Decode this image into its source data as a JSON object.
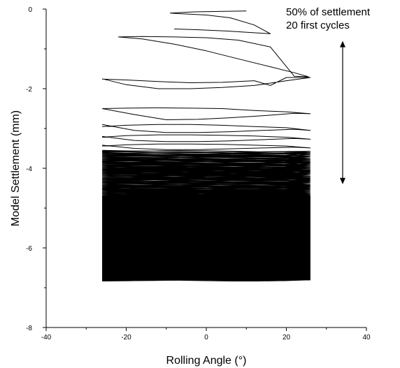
{
  "chart_data": {
    "type": "line",
    "title": "",
    "xlabel": "Rolling Angle (°)",
    "ylabel": "Model Settlement (mm)",
    "xlim": [
      -40,
      40
    ],
    "ylim": [
      -8,
      0
    ],
    "x_ticks": [
      -40,
      -20,
      0,
      20,
      40
    ],
    "y_ticks": [
      0,
      -2,
      -4,
      -6,
      -8
    ],
    "grid": false,
    "legend": "none",
    "series_color": "#000000",
    "rolling_range": [
      -26,
      26
    ],
    "annotations": [
      {
        "lines": [
          "50% of settlement",
          "20 first cycles"
        ]
      }
    ],
    "arrow_range": [
      -0.8,
      -4.4
    ],
    "series": [
      {
        "x": [
          10,
          3,
          -3,
          -9,
          -6,
          0,
          6,
          12,
          16,
          13,
          5,
          -2,
          -8
        ],
        "y": [
          -0.05,
          -0.06,
          -0.07,
          -0.1,
          -0.12,
          -0.15,
          -0.22,
          -0.4,
          -0.62,
          -0.6,
          -0.55,
          -0.52,
          -0.5
        ]
      },
      {
        "x": [
          -22,
          -16,
          -8,
          0,
          8,
          16,
          22,
          25.5,
          22,
          16,
          8,
          0,
          -8,
          -16,
          -22
        ],
        "y": [
          -0.7,
          -0.75,
          -0.88,
          -1.05,
          -1.25,
          -1.45,
          -1.6,
          -1.7,
          -1.69,
          -0.95,
          -0.78,
          -0.72,
          -0.7,
          -0.69,
          -0.7
        ]
      },
      {
        "x": [
          -26,
          -20,
          -12,
          -4,
          4,
          12,
          20,
          26,
          20,
          16,
          12,
          4,
          -4,
          -12,
          -20,
          -26
        ],
        "y": [
          -1.75,
          -1.9,
          -2.0,
          -2.0,
          -1.97,
          -1.92,
          -1.8,
          -1.72,
          -1.72,
          -1.92,
          -1.8,
          -1.84,
          -1.85,
          -1.82,
          -1.78,
          -1.76
        ]
      },
      {
        "x": [
          -26,
          -18,
          -10,
          -2,
          6,
          14,
          22,
          26,
          20,
          12,
          4,
          -4,
          -12,
          -20,
          -26
        ],
        "y": [
          -2.5,
          -2.65,
          -2.78,
          -2.77,
          -2.73,
          -2.68,
          -2.62,
          -2.63,
          -2.58,
          -2.55,
          -2.5,
          -2.49,
          -2.48,
          -2.49,
          -2.5
        ]
      },
      {
        "x": [
          -26,
          -18,
          -10,
          -2,
          6,
          14,
          22,
          26,
          20,
          12,
          4,
          -4,
          -12,
          -20,
          -26
        ],
        "y": [
          -2.9,
          -3.05,
          -3.1,
          -3.1,
          -3.08,
          -3.05,
          -3.02,
          -3.05,
          -2.98,
          -2.95,
          -2.92,
          -2.9,
          -2.9,
          -2.92,
          -2.95
        ]
      },
      {
        "x": [
          -26,
          -18,
          -10,
          -2,
          6,
          14,
          22,
          26,
          20,
          12,
          4,
          -4,
          -12,
          -20,
          -26
        ],
        "y": [
          -3.2,
          -3.3,
          -3.33,
          -3.33,
          -3.31,
          -3.28,
          -3.25,
          -3.27,
          -3.22,
          -3.19,
          -3.17,
          -3.16,
          -3.16,
          -3.18,
          -3.22
        ]
      },
      {
        "x": [
          -26,
          -18,
          -10,
          -2,
          6,
          14,
          22,
          26,
          20,
          12,
          4,
          -4,
          -12,
          -20,
          -26
        ],
        "y": [
          -3.42,
          -3.5,
          -3.53,
          -3.53,
          -3.51,
          -3.49,
          -3.47,
          -3.49,
          -3.44,
          -3.42,
          -3.4,
          -3.39,
          -3.39,
          -3.41,
          -3.44
        ]
      }
    ],
    "dense_band": {
      "start": -3.55,
      "end": -6.8,
      "cycles": 300,
      "amplitude": 0.06
    }
  }
}
